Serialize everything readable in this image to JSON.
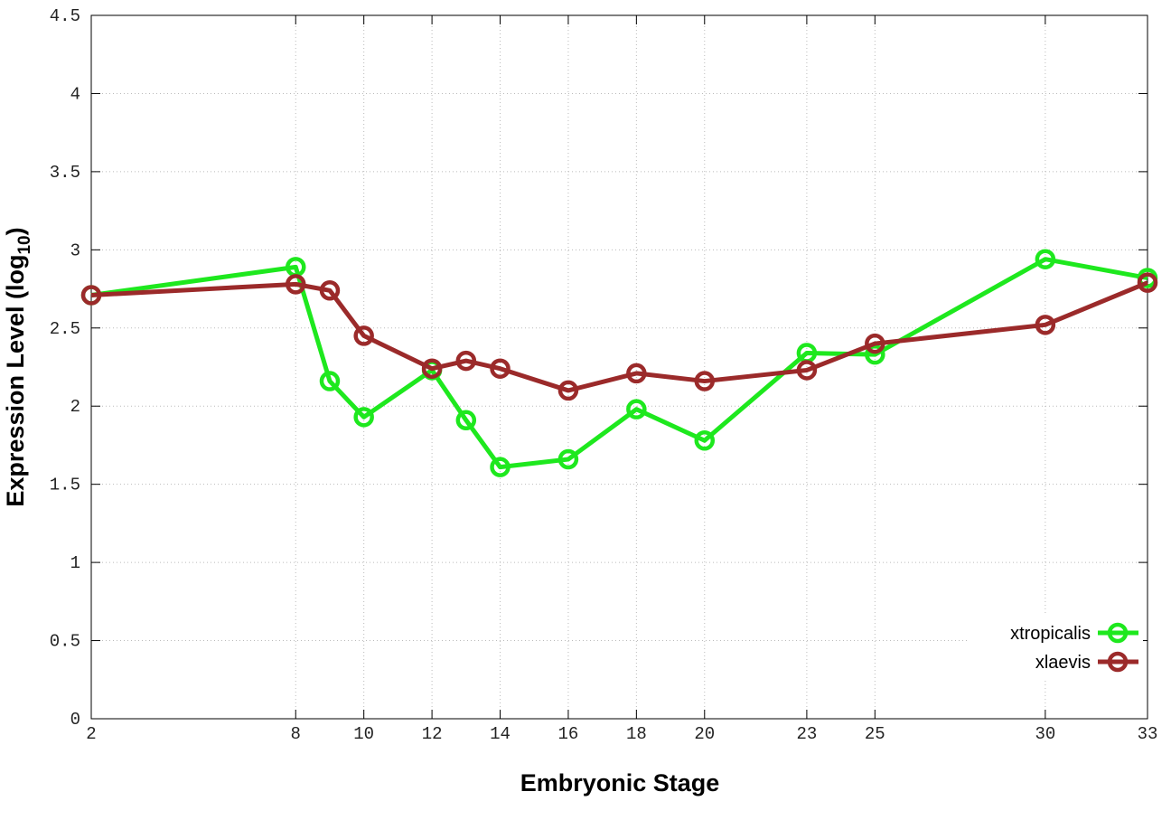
{
  "chart_data": {
    "type": "line",
    "xlabel": "Embryonic Stage",
    "ylabel_parts": [
      "Expression Level (log",
      "10",
      ")"
    ],
    "x": [
      2,
      8,
      9,
      10,
      12,
      13,
      14,
      16,
      18,
      20,
      23,
      25,
      30,
      33
    ],
    "series": [
      {
        "name": "xtropicalis",
        "color": "#1ee81e",
        "values": [
          2.71,
          2.89,
          2.16,
          1.93,
          2.23,
          1.91,
          1.61,
          1.66,
          1.98,
          1.78,
          2.34,
          2.33,
          2.94,
          2.82
        ]
      },
      {
        "name": "xlaevis",
        "color": "#9b2a2a",
        "values": [
          2.71,
          2.78,
          2.74,
          2.45,
          2.24,
          2.29,
          2.24,
          2.1,
          2.21,
          2.16,
          2.23,
          2.4,
          2.52,
          2.79
        ]
      }
    ],
    "xlim": [
      2,
      33
    ],
    "xticks": [
      2,
      8,
      10,
      12,
      14,
      16,
      18,
      20,
      23,
      25,
      30,
      33
    ],
    "ylim": [
      0,
      4.5
    ],
    "yticks": [
      0,
      0.5,
      1,
      1.5,
      2,
      2.5,
      3,
      3.5,
      4,
      4.5
    ],
    "grid": true,
    "legend": "bottom-right"
  }
}
